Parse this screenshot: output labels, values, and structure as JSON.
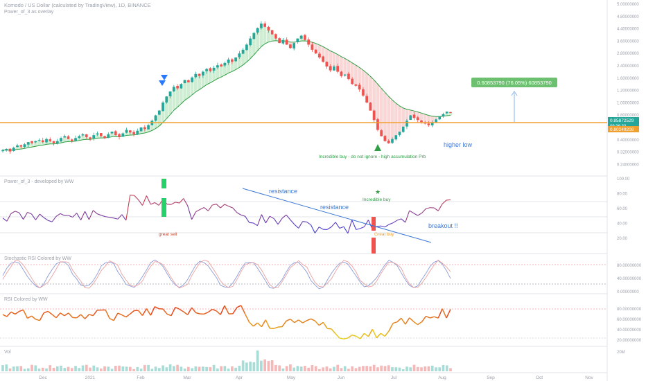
{
  "header": {
    "title": "Komodo / US Dollar (calculated by TradingView), 1D, BINANCE",
    "subtitle": "Power_of_3 as overlay"
  },
  "price_axis": {
    "ticks": [
      "5.00000000",
      "4.80000000",
      "4.40000000",
      "3.60000000",
      "2.80000000",
      "2.40000000",
      "1.60000000",
      "1.20000000",
      "1.00000000",
      "0.80000000",
      "0.60000000",
      "0.40000000",
      "0.32000000",
      "0.24000000"
    ],
    "current_price": "0.85872529",
    "countdown": "09:36:33",
    "level_price": "0.80249208"
  },
  "measure": {
    "label": "0.60853790 (76.05%) 60853790"
  },
  "annotations": {
    "higher_low": "higher low",
    "incredible_buy_main": "Incredible buy - do not ignore - high accumulation Prb",
    "pane2_title": "Power_of_3 - developed by WW",
    "resistance_1": "resistance",
    "resistance_2": "resistance",
    "incredible_buy": "Incredible buy",
    "great_sell": "great sell",
    "great_buy": "Great buy",
    "breakout": "breakout !!",
    "pane3_title": "Stochastic RSI Colored by WW",
    "pane4_title": "RSI Colored by WW",
    "pane5_title": "Vol"
  },
  "pane_axes": {
    "p2": [
      "100.00",
      "80.00",
      "60.00",
      "40.00",
      "20.00"
    ],
    "p3": [
      "80.00000000",
      "40.00000000",
      "0.00000000"
    ],
    "p4": [
      "80.00000000",
      "60.00000000",
      "40.00000000",
      "20.00000000"
    ],
    "p5": [
      "20M"
    ]
  },
  "time_axis": [
    "Dec",
    "2021",
    "Feb",
    "Mar",
    "Apr",
    "May",
    "Jun",
    "Jul",
    "Aug",
    "Sep",
    "Oct",
    "Nov"
  ],
  "colors": {
    "up": "#26a69a",
    "down": "#ef5350",
    "level": "#f0a030",
    "ema": "#2f9e44",
    "trend": "#3b78d6",
    "rsi_hi": "#e04020",
    "rsi_lo": "#f0c020"
  },
  "chart_data": {
    "type": "candlestick",
    "title": "Komodo / US Dollar (calculated by TradingView), 1D, BINANCE",
    "close": [
      0.42,
      0.43,
      0.41,
      0.44,
      0.46,
      0.45,
      0.47,
      0.49,
      0.48,
      0.5,
      0.51,
      0.49,
      0.52,
      0.5,
      0.48,
      0.5,
      0.53,
      0.55,
      0.52,
      0.5,
      0.53,
      0.55,
      0.57,
      0.54,
      0.52,
      0.56,
      0.58,
      0.55,
      0.53,
      0.57,
      0.6,
      0.56,
      0.54,
      0.58,
      0.62,
      0.59,
      0.57,
      0.61,
      0.65,
      0.63,
      0.68,
      0.74,
      0.82,
      0.9,
      1.05,
      1.18,
      1.3,
      1.42,
      1.38,
      1.5,
      1.62,
      1.55,
      1.7,
      1.82,
      1.75,
      1.9,
      2.0,
      1.92,
      2.05,
      2.15,
      2.1,
      2.25,
      2.4,
      2.3,
      2.5,
      2.7,
      2.9,
      3.2,
      3.6,
      4.0,
      4.4,
      4.8,
      4.5,
      4.2,
      3.9,
      3.6,
      3.3,
      3.5,
      3.2,
      3.0,
      3.3,
      3.6,
      3.8,
      3.5,
      3.2,
      2.9,
      2.7,
      2.5,
      2.3,
      2.1,
      1.95,
      2.1,
      1.9,
      1.75,
      1.8,
      1.65,
      1.5,
      1.45,
      1.35,
      1.2,
      1.05,
      0.9,
      0.75,
      0.62,
      0.55,
      0.5,
      0.48,
      0.52,
      0.56,
      0.6,
      0.66,
      0.74,
      0.82,
      0.78,
      0.75,
      0.72,
      0.7,
      0.68,
      0.72,
      0.76,
      0.8,
      0.84,
      0.88,
      0.86
    ],
    "ylim": [
      0.24,
      5.0
    ],
    "x_labels": [
      "Dec",
      "2021",
      "Feb",
      "Mar",
      "Apr",
      "May",
      "Jun",
      "Jul",
      "Aug",
      "Sep",
      "Oct",
      "Nov"
    ]
  }
}
